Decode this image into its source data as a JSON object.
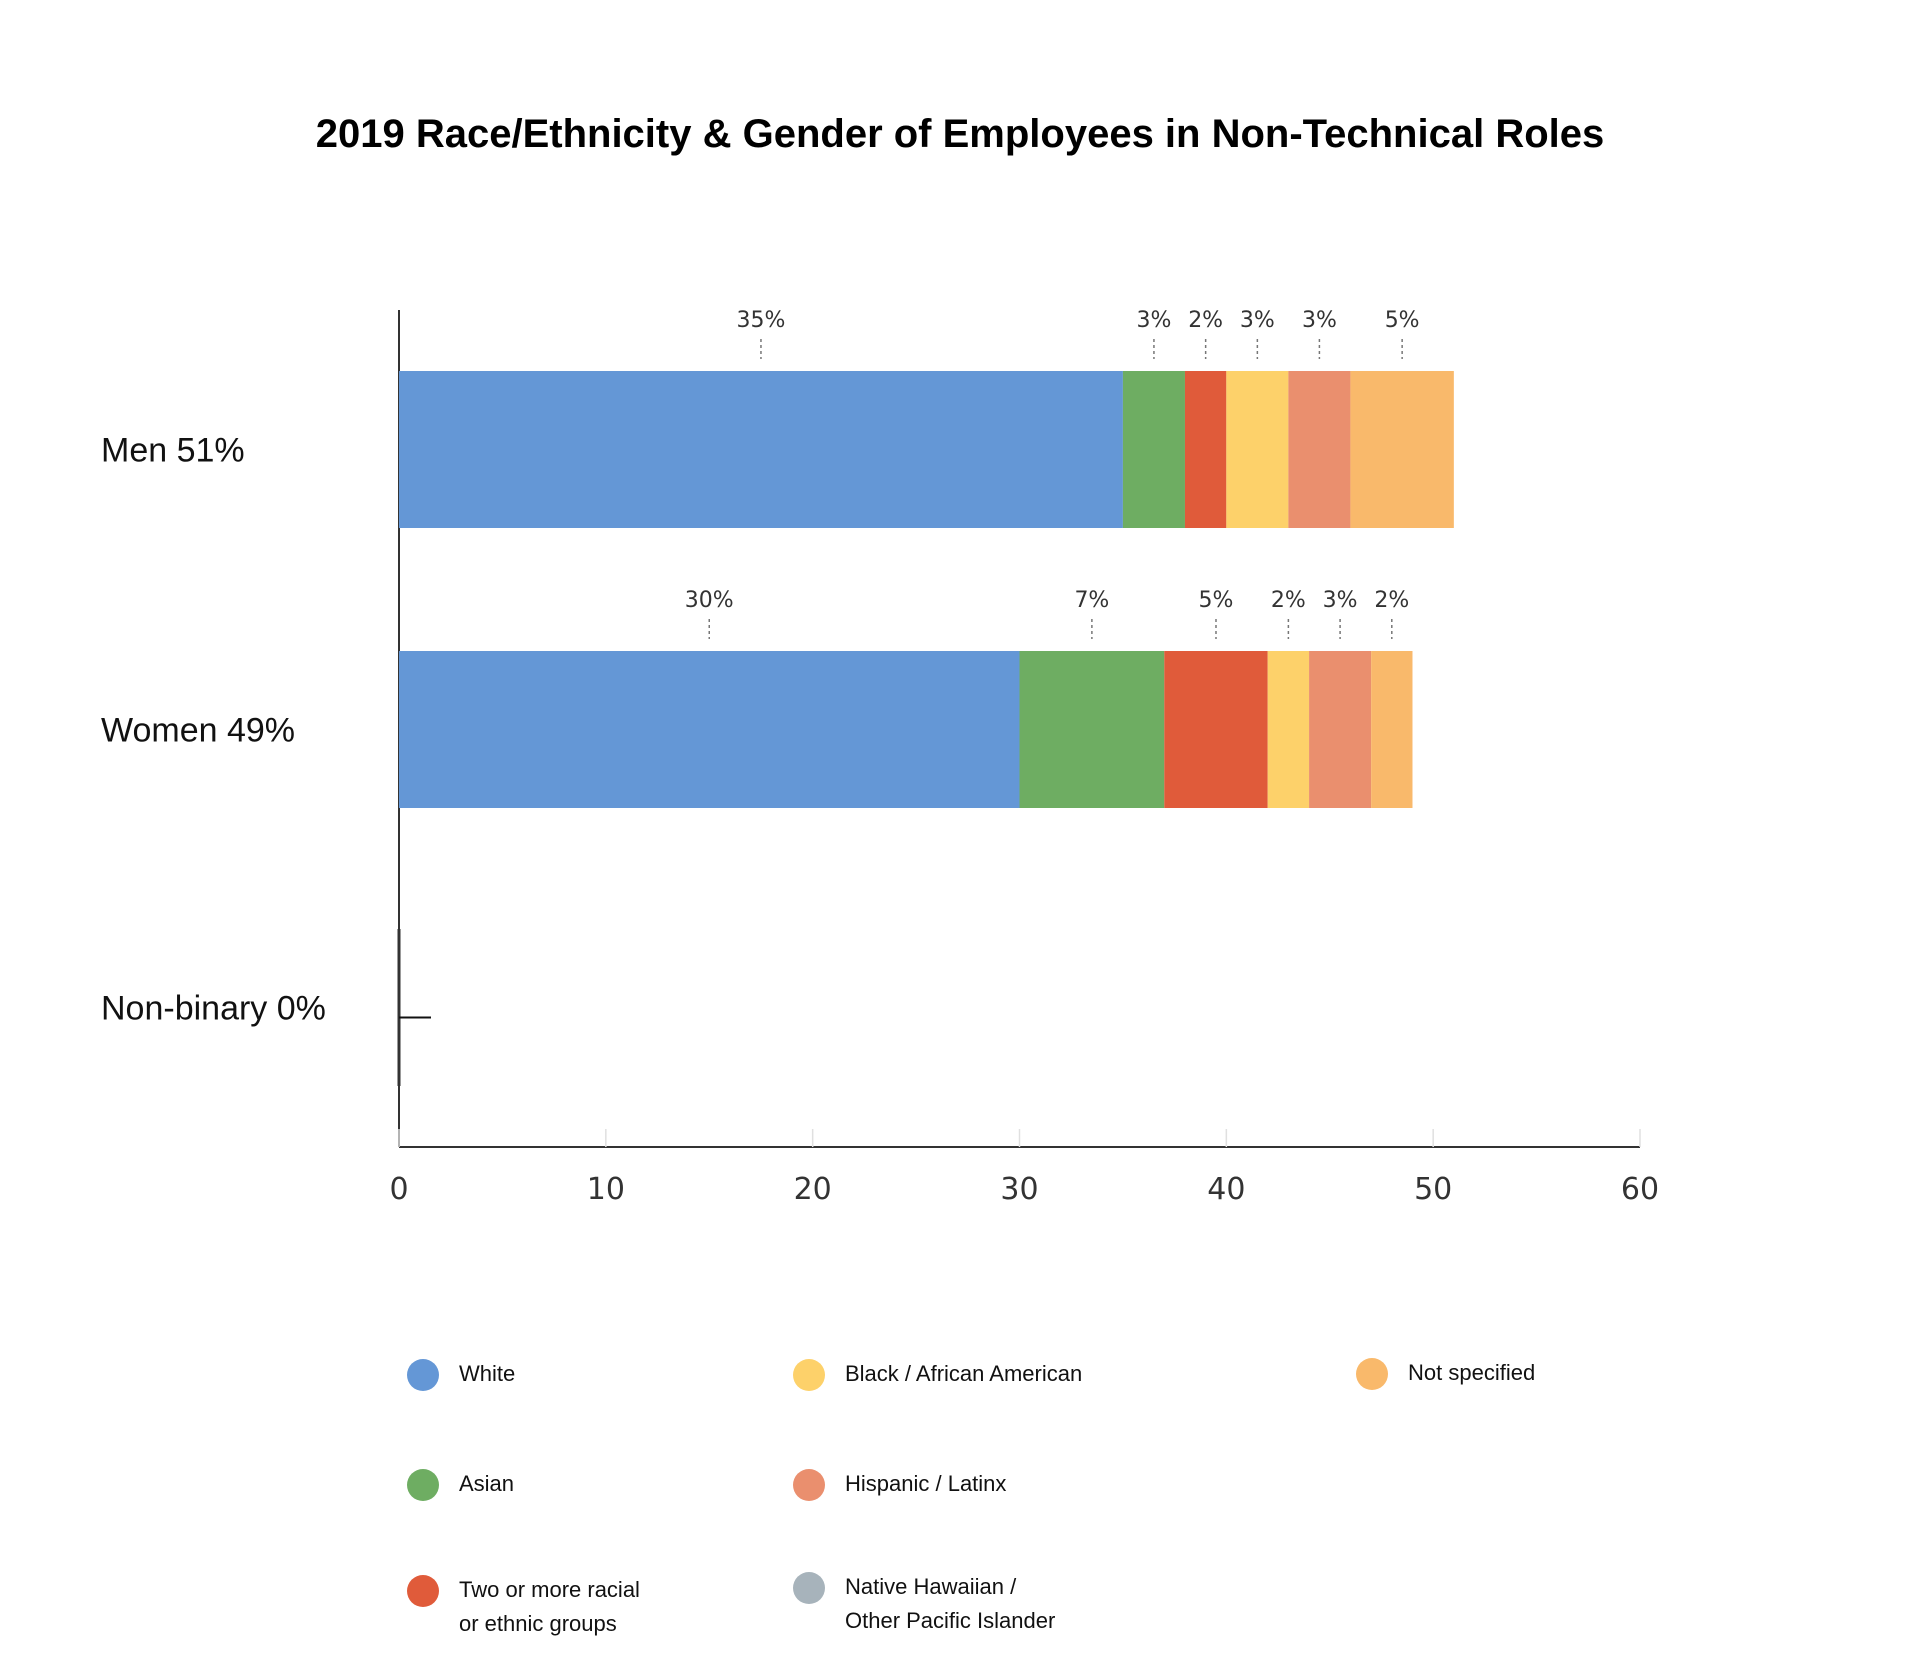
{
  "chart_data": {
    "type": "bar",
    "orientation": "horizontal",
    "stacked": true,
    "title": "2019 Race/Ethnicity & Gender of Employees in Non-Technical Roles",
    "categories": [
      "Men 51%",
      "Women 49%",
      "Non-binary 0%"
    ],
    "series": [
      {
        "name": "White",
        "color": "#6497d6",
        "values": [
          35,
          30,
          0
        ],
        "labels": [
          "35%",
          "30%",
          ""
        ]
      },
      {
        "name": "Asian",
        "color": "#6ead62",
        "values": [
          3,
          7,
          0
        ],
        "labels": [
          "3%",
          "7%",
          ""
        ]
      },
      {
        "name": "Two or more racial or ethnic groups",
        "color": "#e05b3a",
        "values": [
          2,
          5,
          0
        ],
        "labels": [
          "2%",
          "5%",
          ""
        ]
      },
      {
        "name": "Black / African American",
        "color": "#fdd16a",
        "values": [
          3,
          2,
          0
        ],
        "labels": [
          "3%",
          "2%",
          ""
        ]
      },
      {
        "name": "Hispanic /  Latinx",
        "color": "#ea8f6e",
        "values": [
          3,
          3,
          0
        ],
        "labels": [
          "3%",
          "3%",
          ""
        ]
      },
      {
        "name": "Not specified",
        "color": "#f9b96b",
        "values": [
          5,
          2,
          0
        ],
        "labels": [
          "5%",
          "2%",
          ""
        ]
      },
      {
        "name": "Native Hawaiian / Other Pacific Islander",
        "color": "#a7b3bb",
        "values": [
          0,
          0,
          0
        ],
        "labels": [
          "",
          "",
          ""
        ]
      }
    ],
    "xlim": [
      0,
      60
    ],
    "xticks": [
      "0",
      "10",
      "20",
      "30",
      "40",
      "50",
      "60"
    ],
    "legend_position": "bottom",
    "grid": false
  },
  "legend": [
    {
      "label": "White",
      "color": "#6497d6"
    },
    {
      "label": "Asian",
      "color": "#6ead62"
    },
    {
      "label": "Two or more racial\nor ethnic groups",
      "color": "#e05b3a"
    },
    {
      "label": "Black / African American",
      "color": "#fdd16a"
    },
    {
      "label": "Hispanic /  Latinx",
      "color": "#ea8f6e"
    },
    {
      "label": "Native Hawaiian /\nOther Pacific Islander",
      "color": "#a7b3bb"
    },
    {
      "label": "Not specified",
      "color": "#f9b96b"
    }
  ]
}
